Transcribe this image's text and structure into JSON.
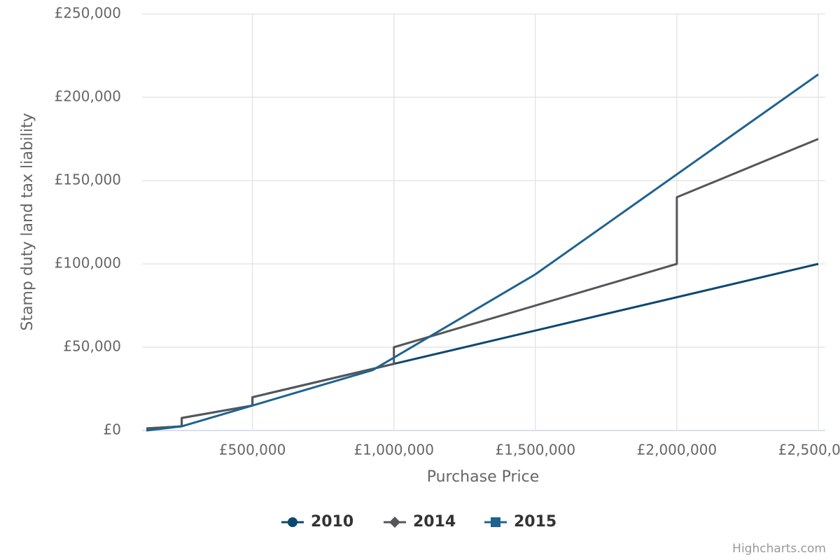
{
  "chart_data": {
    "type": "line",
    "x_label": "Purchase Price",
    "y_label": "Stamp duty land tax liability",
    "credit": "Highcharts.com",
    "xlim": [
      110000,
      2500000
    ],
    "ylim": [
      0,
      250000
    ],
    "xticks": [
      {
        "value": 500000,
        "label": "£500,000"
      },
      {
        "value": 1000000,
        "label": "£1,000,000"
      },
      {
        "value": 1500000,
        "label": "£1,500,000"
      },
      {
        "value": 2000000,
        "label": "£2,000,000"
      },
      {
        "value": 2500000,
        "label": "£2,500,000"
      }
    ],
    "yticks": [
      {
        "value": 0,
        "label": "£0"
      },
      {
        "value": 50000,
        "label": "£50,000"
      },
      {
        "value": 100000,
        "label": "£100,000"
      },
      {
        "value": 150000,
        "label": "£150,000"
      },
      {
        "value": 200000,
        "label": "£200,000"
      },
      {
        "value": 250000,
        "label": "£250,000"
      }
    ],
    "grid": true,
    "series": [
      {
        "name": "2010",
        "color": "#0b4870",
        "marker": "circle",
        "x": [
          125000,
          250000,
          250001,
          500000,
          500001,
          1000000,
          2500000
        ],
        "values": [
          1250,
          2500,
          7500,
          15000,
          20000,
          40000,
          100000
        ]
      },
      {
        "name": "2014",
        "color": "#55565a",
        "marker": "diamond",
        "x": [
          125000,
          250000,
          250001,
          500000,
          500001,
          1000000,
          1000001,
          2000000,
          2000001,
          2500000
        ],
        "values": [
          1250,
          2500,
          7500,
          15000,
          20000,
          40000,
          50000,
          100000,
          140000,
          175000
        ]
      },
      {
        "name": "2015",
        "color": "#1f6391",
        "marker": "square",
        "x": [
          125000,
          250000,
          925000,
          1500000,
          2500000
        ],
        "values": [
          0,
          2500,
          36250,
          93750,
          213750
        ]
      }
    ]
  }
}
